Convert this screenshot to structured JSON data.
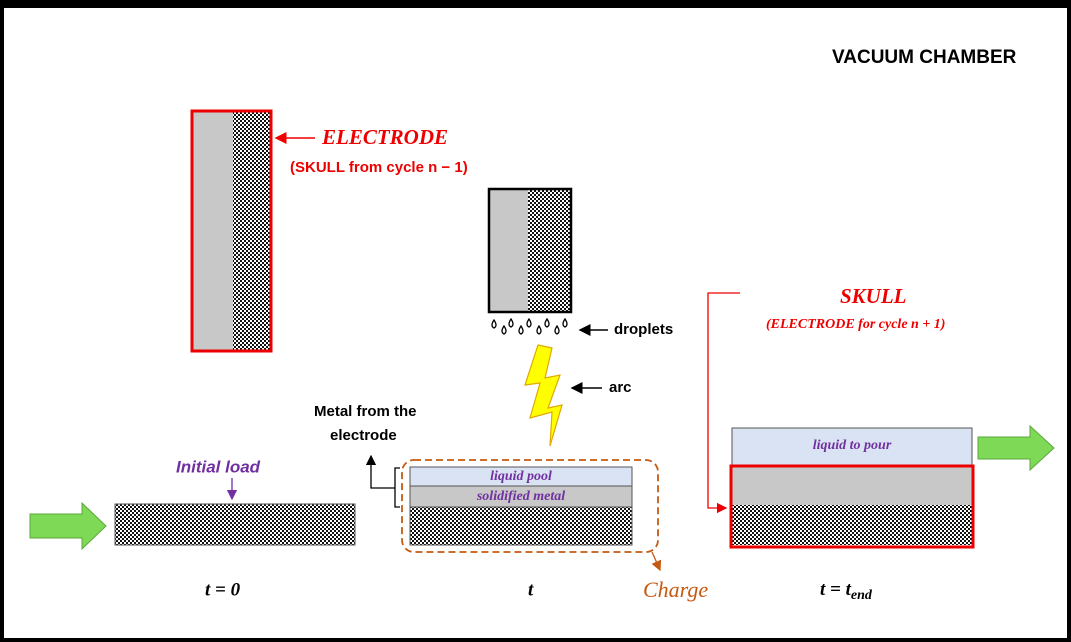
{
  "header": {
    "title": "VACUUM CHAMBER"
  },
  "electrode": {
    "label": "ELECTRODE",
    "note": "(SKULL from cycle n − 1)"
  },
  "droplets": "droplets",
  "arc": "arc",
  "metal_note": [
    "Metal from the",
    "electrode"
  ],
  "initial_load": "Initial load",
  "charge": {
    "liquid": "liquid pool",
    "solid": "solidified metal",
    "label": "Charge"
  },
  "skull": {
    "label": "SKULL",
    "note": "(ELECTRODE for cycle n + 1)",
    "liquid": "liquid to pour"
  },
  "times": {
    "start": "t = 0",
    "mid": "t",
    "end": {
      "main": "t = t",
      "sub": "end"
    }
  }
}
